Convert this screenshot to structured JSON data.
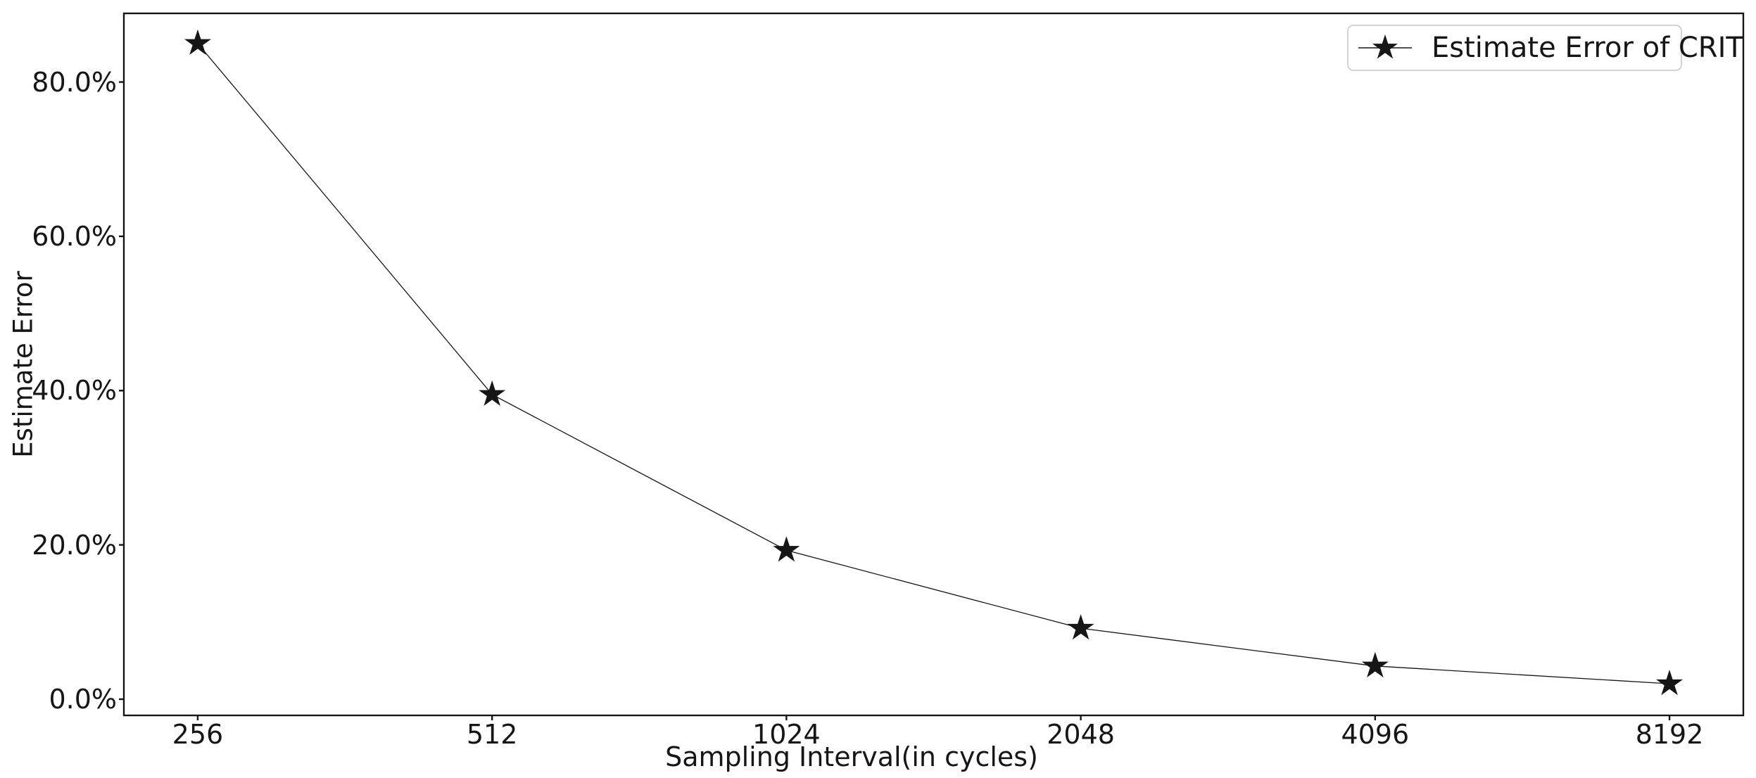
{
  "figure": {
    "background": "#ffffff",
    "ink_color": "#161616",
    "legend_border_color": "#d4d4d4"
  },
  "chart_data": {
    "type": "line",
    "title": "",
    "xlabel": "Sampling Interval(in cycles)",
    "ylabel": "Estimate Error",
    "categories": [
      "256",
      "512",
      "1024",
      "2048",
      "4096",
      "8192"
    ],
    "series": [
      {
        "name": "Estimate Error of CRIT",
        "marker": "star",
        "color": "#161616",
        "values": [
          85.0,
          39.5,
          19.3,
          9.2,
          4.3,
          2.0
        ]
      }
    ],
    "values_unit": "%",
    "yticks": [
      0,
      20,
      40,
      60,
      80
    ],
    "ytick_labels": [
      "0.0%",
      "20.0%",
      "40.0%",
      "60.0%",
      "80.0%"
    ],
    "ylim": [
      -2.1,
      88.9
    ],
    "grid": false,
    "legend": {
      "position": "upper right",
      "entries": [
        {
          "label": "Estimate Error of CRIT",
          "marker": "star"
        }
      ]
    }
  }
}
